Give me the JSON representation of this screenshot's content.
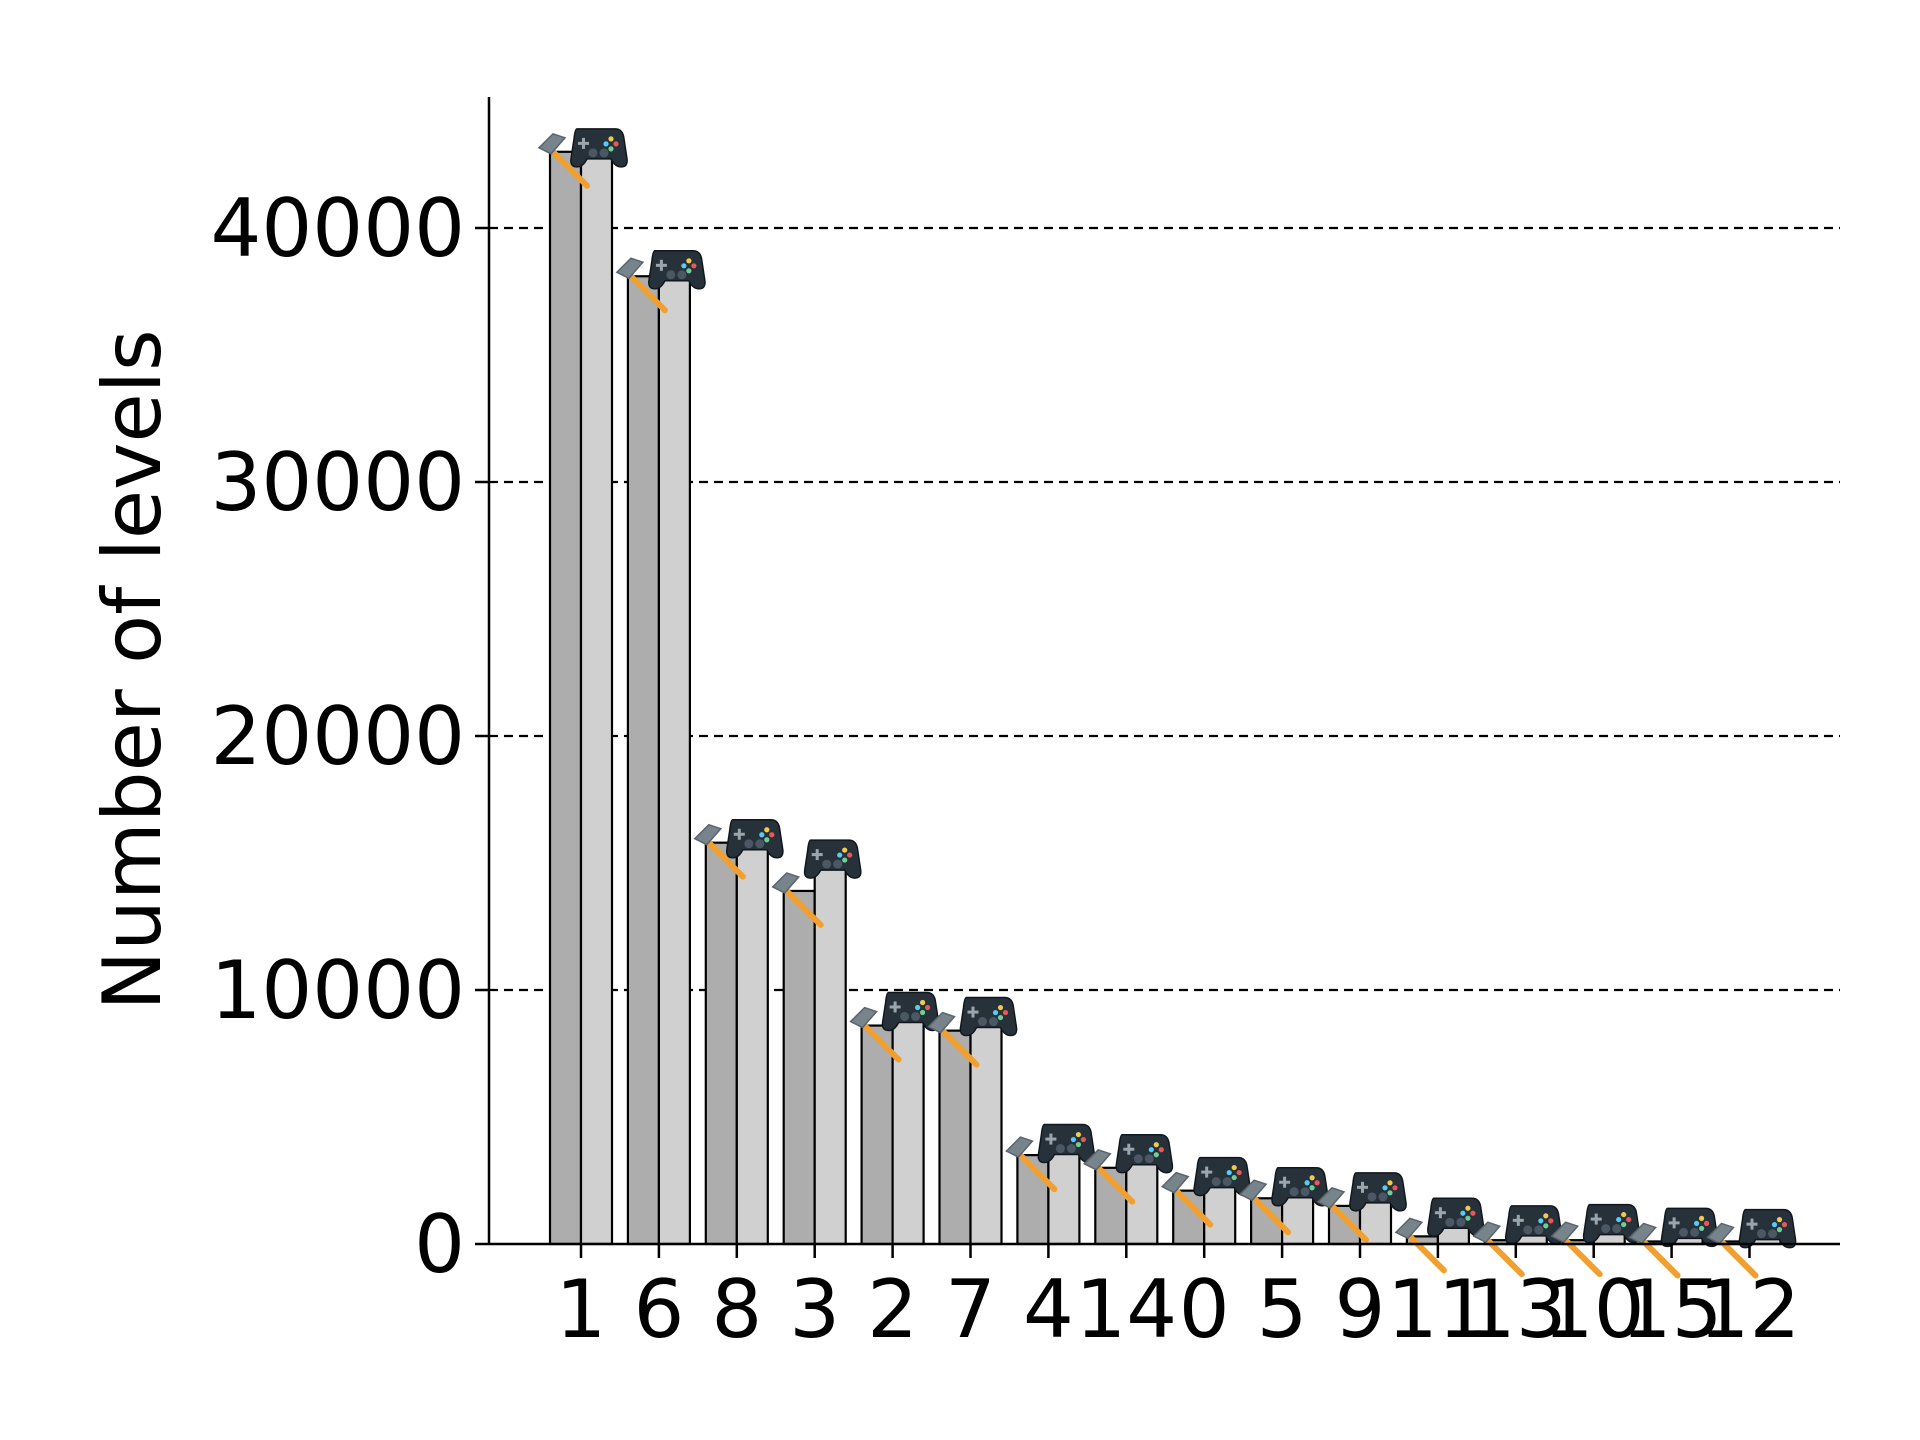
{
  "chart_data": {
    "type": "bar",
    "title": "",
    "xlabel": "",
    "ylabel": "Number of levels",
    "ylim": [
      0,
      45000
    ],
    "yticks": [
      0,
      10000,
      20000,
      30000,
      40000
    ],
    "grid": "y-dashed",
    "legend": "none",
    "categories": [
      "1",
      "6",
      "8",
      "3",
      "2",
      "7",
      "4",
      "14",
      "0",
      "5",
      "9",
      "11",
      "13",
      "10",
      "15",
      "12"
    ],
    "series": [
      {
        "marker_icon": "hammer-icon",
        "color": "#adadad",
        "values": [
          43000,
          38100,
          15800,
          13900,
          8600,
          8400,
          3500,
          3000,
          2100,
          1800,
          1500,
          300,
          150,
          150,
          100,
          100
        ]
      },
      {
        "marker_icon": "gamepad-icon",
        "color": "#d0d0d0",
        "values": [
          42800,
          38000,
          15600,
          14800,
          8800,
          8600,
          3600,
          3200,
          2300,
          1900,
          1700,
          700,
          400,
          450,
          300,
          250
        ]
      }
    ]
  }
}
